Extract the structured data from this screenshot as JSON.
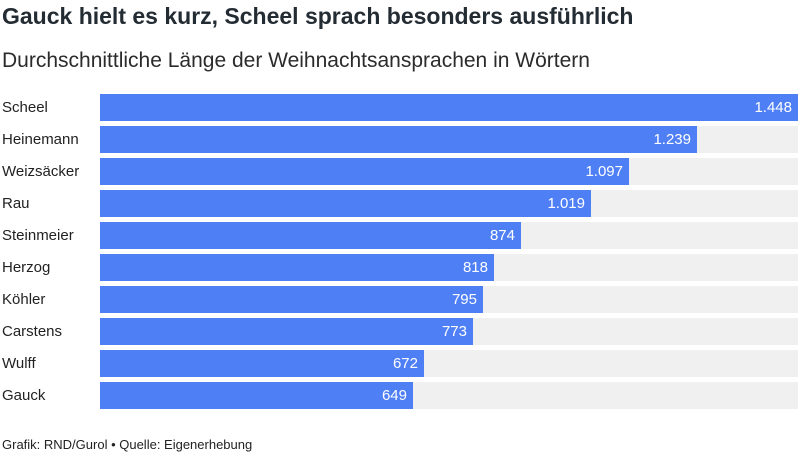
{
  "title": "Gauck hielt es kurz, Scheel sprach besonders ausführlich",
  "subtitle": "Durchschnittliche Länge der Weihnachtsansprachen in Wörtern",
  "footer": "Grafik: RND/Gurol • Quelle: Eigenerhebung",
  "colors": {
    "bar": "#4f7ff5",
    "track": "#f0f0f0"
  },
  "chart_data": {
    "type": "bar",
    "orientation": "horizontal",
    "categories": [
      "Scheel",
      "Heinemann",
      "Weizsäcker",
      "Rau",
      "Steinmeier",
      "Herzog",
      "Köhler",
      "Carstens",
      "Wulff",
      "Gauck"
    ],
    "values": [
      1448,
      1239,
      1097,
      1019,
      874,
      818,
      795,
      773,
      672,
      649
    ],
    "labels": [
      "1.448",
      "1.239",
      "1.097",
      "1.019",
      "874",
      "818",
      "795",
      "773",
      "672",
      "649"
    ],
    "xlim": [
      0,
      1448
    ],
    "grid": false,
    "legend": "none"
  }
}
